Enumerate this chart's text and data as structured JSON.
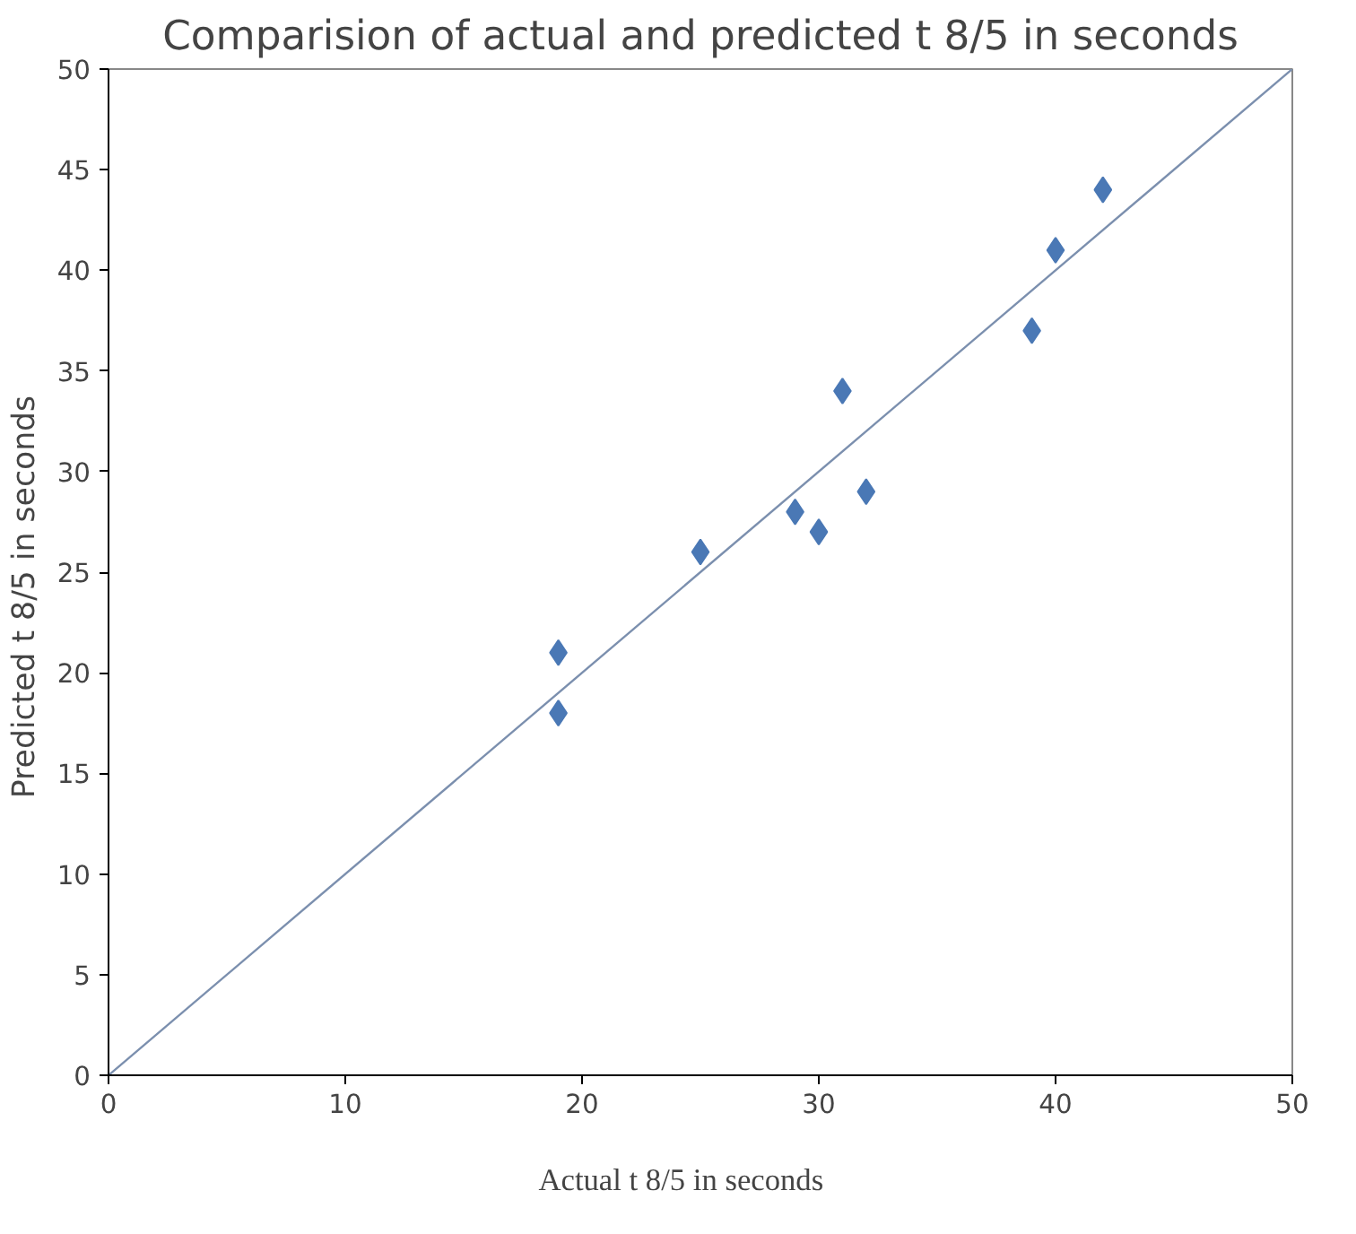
{
  "chart_data": {
    "type": "scatter",
    "title": "Comparision of actual and predicted t 8/5 in seconds",
    "xlabel": "Actual    t 8/5   in seconds",
    "ylabel": "Predicted    t 8/5   in seconds",
    "xlim": [
      0,
      50
    ],
    "ylim": [
      0,
      50
    ],
    "xticks": [
      0,
      10,
      20,
      30,
      40,
      50
    ],
    "yticks": [
      0,
      5,
      10,
      15,
      20,
      25,
      30,
      35,
      40,
      45,
      50
    ],
    "grid": false,
    "series": [
      {
        "marker": "diamond",
        "color": "#4a78b5",
        "x": [
          19,
          19,
          25,
          29,
          30,
          31,
          32,
          39,
          40,
          42
        ],
        "values": [
          21,
          18,
          26,
          28,
          27,
          34,
          29,
          37,
          41,
          44
        ]
      },
      {
        "type": "line",
        "marker": "none",
        "line_style": "solid",
        "color": "#7b8fae",
        "x": [
          0,
          50
        ],
        "values": [
          0,
          50
        ]
      }
    ]
  }
}
